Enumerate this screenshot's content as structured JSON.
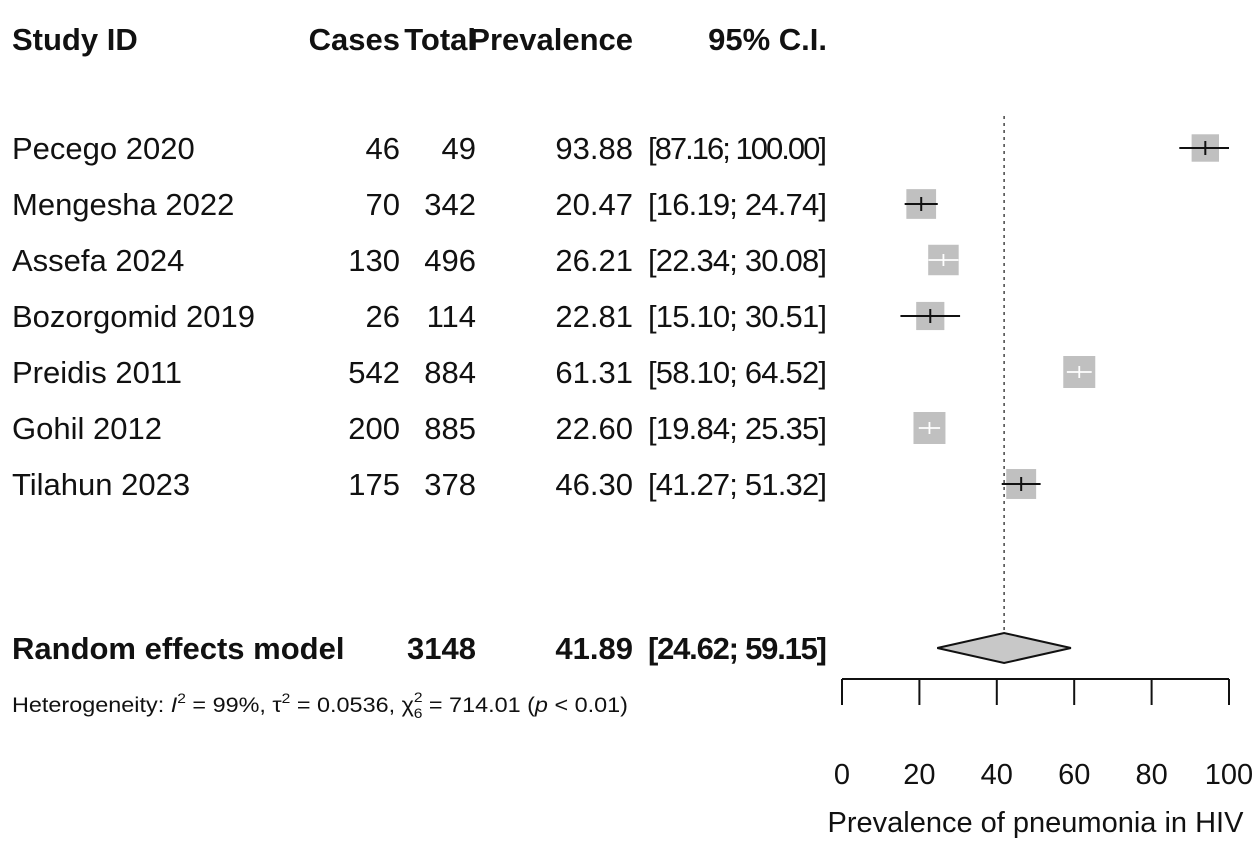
{
  "chart_data": {
    "type": "forest",
    "columns": {
      "study": "Study ID",
      "cases": "Cases",
      "total": "Total",
      "prevalence": "Prevalence",
      "ci": "95% C.I."
    },
    "studies": [
      {
        "name": "Pecego 2020",
        "cases": "46",
        "total": "49",
        "prev_text": "93.88",
        "ci_text": "[87.16; 100.00]",
        "prev": 93.88,
        "lower": 87.16,
        "upper": 100.0
      },
      {
        "name": "Mengesha 2022",
        "cases": "70",
        "total": "342",
        "prev_text": "20.47",
        "ci_text": "[16.19; 24.74]",
        "prev": 20.47,
        "lower": 16.19,
        "upper": 24.74
      },
      {
        "name": "Assefa 2024",
        "cases": "130",
        "total": "496",
        "prev_text": "26.21",
        "ci_text": "[22.34; 30.08]",
        "prev": 26.21,
        "lower": 22.34,
        "upper": 30.08
      },
      {
        "name": "Bozorgomid 2019",
        "cases": "26",
        "total": "114",
        "prev_text": "22.81",
        "ci_text": "[15.10; 30.51]",
        "prev": 22.81,
        "lower": 15.1,
        "upper": 30.51
      },
      {
        "name": "Preidis 2011",
        "cases": "542",
        "total": "884",
        "prev_text": "61.31",
        "ci_text": "[58.10; 64.52]",
        "prev": 61.31,
        "lower": 58.1,
        "upper": 64.52
      },
      {
        "name": "Gohil 2012",
        "cases": "200",
        "total": "885",
        "prev_text": "22.60",
        "ci_text": "[19.84; 25.35]",
        "prev": 22.6,
        "lower": 19.84,
        "upper": 25.35
      },
      {
        "name": "Tilahun 2023",
        "cases": "175",
        "total": "378",
        "prev_text": "46.30",
        "ci_text": "[41.27; 51.32]",
        "prev": 46.3,
        "lower": 41.27,
        "upper": 51.32
      }
    ],
    "pooled": {
      "name": "Random effects model",
      "total": "3148",
      "prev_text": "41.89",
      "ci_text": "[24.62; 59.15]",
      "prev": 41.89,
      "lower": 24.62,
      "upper": 59.15
    },
    "heterogeneity": {
      "prefix": "Heterogeneity: ",
      "i_symbol": "I",
      "i_power": "2",
      "i_value": " = 99%, ",
      "tau_symbol": "τ",
      "tau_power": "2",
      "tau_value": " = 0.0536, ",
      "chi_symbol": "χ",
      "chi_power": "2",
      "chi_df": "6",
      "chi_value": " = 714.01 (",
      "p_symbol": "p",
      "p_value": " < 0.01)"
    },
    "xlim": [
      0,
      100
    ],
    "ticks": [
      "0",
      "20",
      "40",
      "60",
      "80",
      "100"
    ],
    "tick_values": [
      0,
      20,
      40,
      60,
      80,
      100
    ],
    "xlabel": "Prevalence of pneumonia in HIV",
    "reference_line": 41.89,
    "colors": {
      "square": "#c0c0c0",
      "diamond": "#c8c8c8",
      "line": "#111111",
      "ci_inside": "#ffffff"
    }
  }
}
